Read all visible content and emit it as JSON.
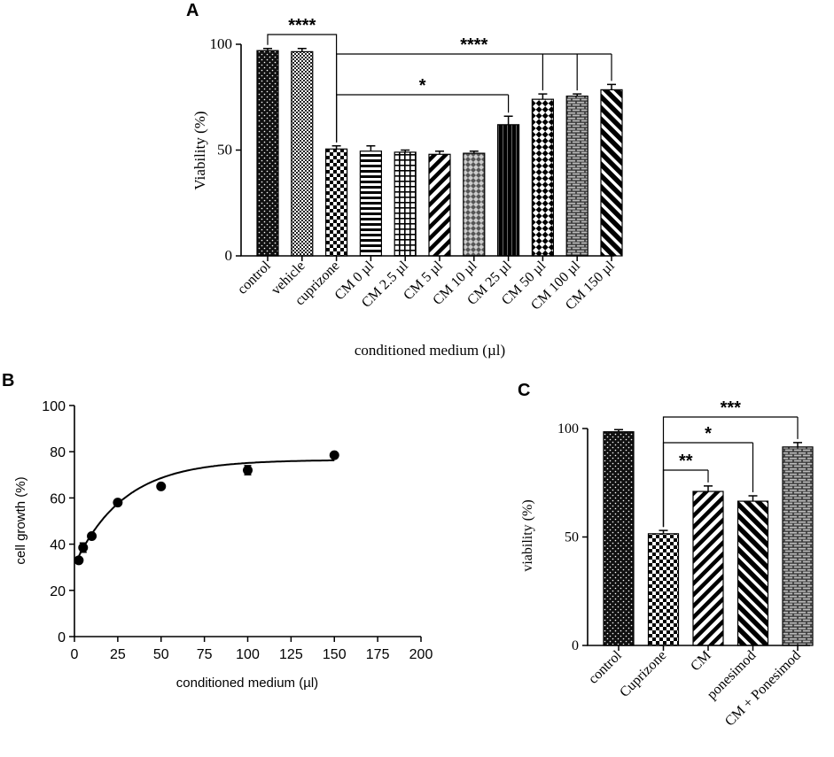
{
  "chart_data": [
    {
      "panel": "A",
      "type": "bar",
      "xlabel": "conditioned medium (µl)",
      "ylabel": "Viability (%)",
      "ylim": [
        0,
        100
      ],
      "yticks": [
        0,
        50,
        100
      ],
      "categories": [
        "control",
        "vehicle",
        "cuprizone",
        "CM 0 µl",
        "CM 2.5 µl",
        "CM 5 µl",
        "CM 10 µl",
        "CM 25 µl",
        "CM 50 µl",
        "CM 100 µl",
        "CM 150 µl"
      ],
      "values": [
        97,
        96.5,
        50.5,
        49.5,
        49,
        48,
        48.5,
        62,
        74,
        75.5,
        78.5
      ],
      "errors": [
        1,
        1.5,
        1.5,
        2.5,
        1,
        1.5,
        1,
        4,
        2.5,
        1,
        2.5
      ],
      "patterns": [
        "dots",
        "checker-fine",
        "checker",
        "hlines",
        "grid",
        "diag-thick",
        "diamond",
        "solid-vlines",
        "big-checker",
        "brick",
        "diag-white"
      ],
      "significance": [
        {
          "label": "****",
          "from": 0,
          "to": 2
        },
        {
          "label": "****",
          "from": 2,
          "to": [
            8,
            9,
            10
          ]
        },
        {
          "label": "*",
          "from": 2,
          "to": [
            7
          ]
        }
      ]
    },
    {
      "panel": "B",
      "type": "scatter",
      "xlabel": "conditioned medium (µl)",
      "ylabel": "cell growth (%)",
      "xlim": [
        0,
        200
      ],
      "ylim": [
        0,
        100
      ],
      "xticks": [
        0,
        25,
        50,
        75,
        100,
        125,
        150,
        175,
        200
      ],
      "yticks": [
        0,
        20,
        40,
        60,
        80,
        100
      ],
      "x": [
        2.5,
        5,
        10,
        25,
        50,
        100,
        150
      ],
      "y": [
        33,
        38.5,
        43.5,
        58,
        65,
        72,
        78.5
      ],
      "errors": [
        0,
        2,
        0,
        0,
        0,
        2,
        0
      ],
      "fit": {
        "model": "one-phase association",
        "y0": 31,
        "plateau": 76.5,
        "k": 0.035
      }
    },
    {
      "panel": "C",
      "type": "bar",
      "xlabel": "",
      "ylabel": "viability (%)",
      "ylim": [
        0,
        100
      ],
      "yticks": [
        0,
        50,
        100
      ],
      "categories": [
        "control",
        "Cuprizone",
        "CM",
        "ponesimod",
        "CM + Ponesimod"
      ],
      "values": [
        98.5,
        51.5,
        71,
        66.5,
        91.5
      ],
      "errors": [
        1,
        1.5,
        2.5,
        2.5,
        2
      ],
      "patterns": [
        "dots",
        "checker",
        "diag-thick",
        "diag-white",
        "brick"
      ],
      "significance": [
        {
          "label": "***",
          "from": 1,
          "to": [
            4
          ]
        },
        {
          "label": "*",
          "from": 1,
          "to": [
            3
          ]
        },
        {
          "label": "**",
          "from": 1,
          "to": [
            2
          ]
        }
      ]
    }
  ],
  "panels": {
    "a": {
      "letter": "A"
    },
    "b": {
      "letter": "B"
    },
    "c": {
      "letter": "C"
    }
  }
}
